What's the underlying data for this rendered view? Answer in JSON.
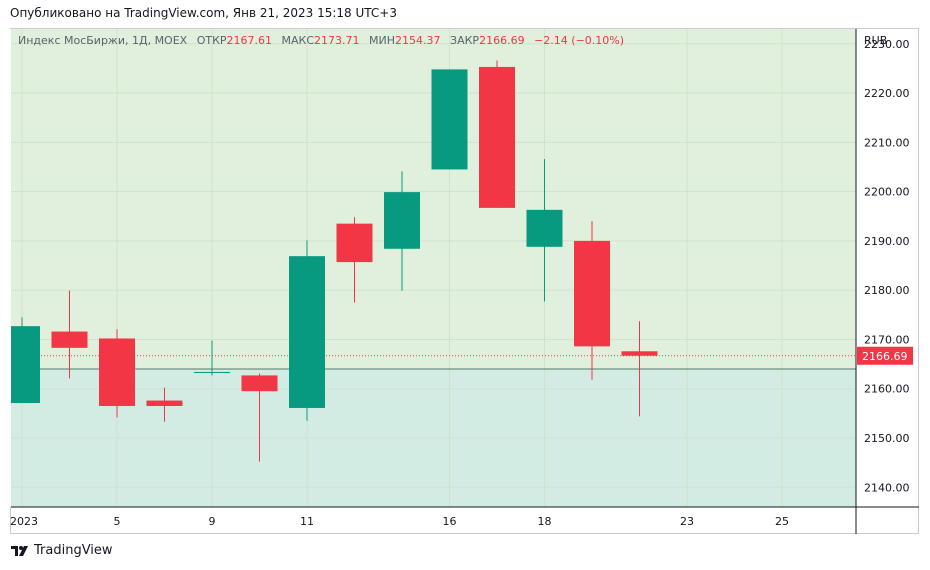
{
  "header": {
    "published": "Опубликовано на TradingView.com, Янв 21, 2023 15:18 UTC+3"
  },
  "legend": {
    "symbol": "Индекс МосБиржи, 1Д, MOEX",
    "open_label": "ОТКР",
    "open": "2167.61",
    "high_label": "МАКС",
    "high": "2173.71",
    "low_label": "МИН",
    "low": "2154.37",
    "close_label": "ЗАКР",
    "close": "2166.69",
    "change": "−2.14 (−0.10%)"
  },
  "footer": {
    "brand": "TradingView",
    "logo_icon": "tradingview-logo-icon"
  },
  "colors": {
    "up": "#089981",
    "down": "#f23645",
    "bg_above": "#e0f0dd",
    "bg_below": "#d2ebe3",
    "grid": "#cfe3cc",
    "baseline": "#4f7b6b"
  },
  "chart_data": {
    "type": "candlestick",
    "currency": "RUB",
    "ylim": [
      2136,
      2233
    ],
    "yticks": [
      2140,
      2150,
      2160,
      2170,
      2180,
      2190,
      2200,
      2210,
      2220,
      2230
    ],
    "ytick_labels": [
      "2140.00",
      "2150.00",
      "2160.00",
      "2170.00",
      "2180.00",
      "2190.00",
      "2200.00",
      "2210.00",
      "2220.00",
      "2230.00"
    ],
    "xtick_labels": [
      {
        "slot": 0,
        "label": "2023"
      },
      {
        "slot": 2,
        "label": "5"
      },
      {
        "slot": 4,
        "label": "9"
      },
      {
        "slot": 6,
        "label": "11"
      },
      {
        "slot": 9,
        "label": "16"
      },
      {
        "slot": 11,
        "label": "18"
      },
      {
        "slot": 14,
        "label": "23"
      },
      {
        "slot": 16,
        "label": "25"
      }
    ],
    "baseline": 2164.0,
    "last_price": 2166.69,
    "last_price_label": "2166.69",
    "candles": [
      {
        "slot": 0,
        "open": 2157.1,
        "high": 2174.5,
        "low": 2157.1,
        "close": 2172.7
      },
      {
        "slot": 1,
        "open": 2171.6,
        "high": 2179.9,
        "low": 2162.1,
        "close": 2168.3
      },
      {
        "slot": 2,
        "open": 2170.2,
        "high": 2172.1,
        "low": 2154.2,
        "close": 2156.5
      },
      {
        "slot": 3,
        "open": 2157.6,
        "high": 2160.2,
        "low": 2153.3,
        "close": 2156.5
      },
      {
        "slot": 4,
        "open": 2163.3,
        "high": 2169.8,
        "low": 2162.7,
        "close": 2163.4
      },
      {
        "slot": 5,
        "open": 2162.7,
        "high": 2163.1,
        "low": 2145.2,
        "close": 2159.5
      },
      {
        "slot": 6,
        "open": 2156.1,
        "high": 2190.1,
        "low": 2153.5,
        "close": 2186.9
      },
      {
        "slot": 7,
        "open": 2193.5,
        "high": 2194.8,
        "low": 2177.5,
        "close": 2185.7
      },
      {
        "slot": 8,
        "open": 2188.4,
        "high": 2204.1,
        "low": 2179.9,
        "close": 2199.9
      },
      {
        "slot": 9,
        "open": 2204.5,
        "high": 2224.8,
        "low": 2204.5,
        "close": 2224.8
      },
      {
        "slot": 10,
        "open": 2225.3,
        "high": 2226.6,
        "low": 2196.7,
        "close": 2196.7
      },
      {
        "slot": 11,
        "open": 2188.8,
        "high": 2206.6,
        "low": 2177.7,
        "close": 2196.3
      },
      {
        "slot": 12,
        "open": 2190.0,
        "high": 2194.0,
        "low": 2161.8,
        "close": 2168.6
      },
      {
        "slot": 13,
        "open": 2167.6,
        "high": 2173.7,
        "low": 2154.4,
        "close": 2166.7
      }
    ]
  }
}
